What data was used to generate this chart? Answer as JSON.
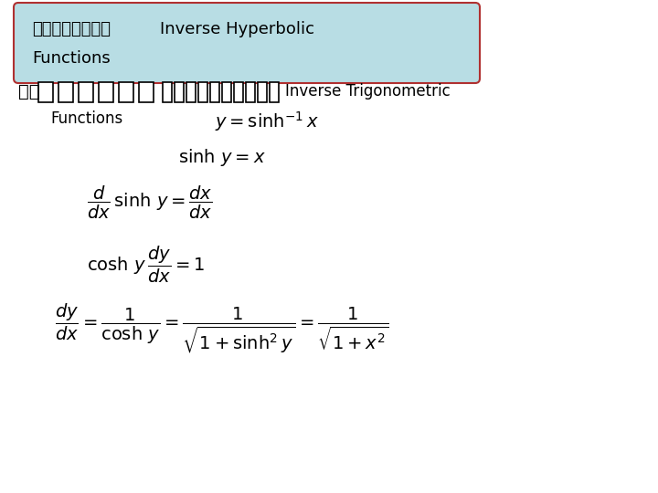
{
  "title_thai": "อนพนธของ",
  "title_english": "Inverse Hyperbolic",
  "title_line2": "Functions",
  "subtitle_thai": "หา",
  "subtitle_english": "Inverse Trigonometric",
  "subtitle_line2": "Functions",
  "box_bg_color": "#b8dde4",
  "box_border_color": "#b03030",
  "background_color": "#ffffff",
  "text_color": "#000000",
  "font_size_title": 13,
  "font_size_body": 12,
  "font_size_math": 13
}
